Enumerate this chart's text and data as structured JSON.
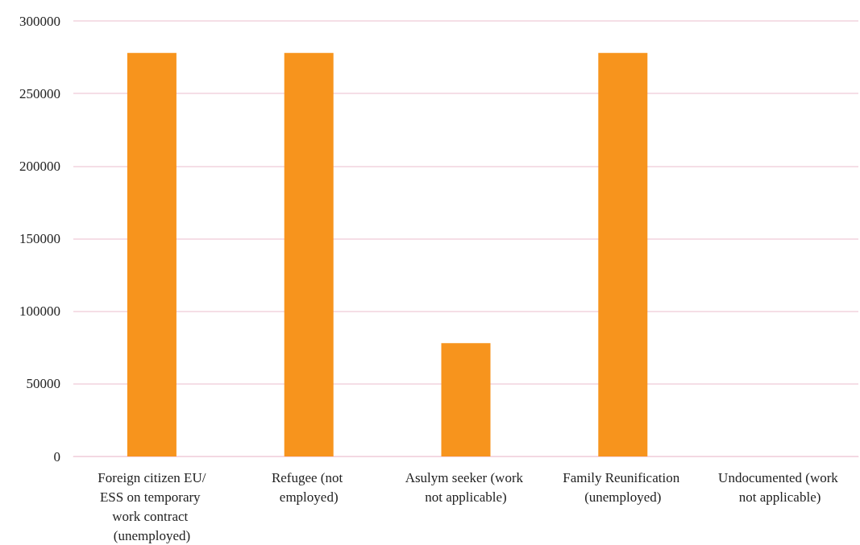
{
  "chart_data": {
    "type": "bar",
    "categories": [
      "Foreign citizen EU/ESS on temporary work contract (unemployed)",
      "Refugee (not employed)",
      "Asulym seeker (work not applicable)",
      "Family Reunification (unemployed)",
      "Undocumented (work not applicable)"
    ],
    "values": [
      278000,
      278000,
      78000,
      278000,
      0
    ],
    "color": "#f7941d",
    "ylim": [
      0,
      300000
    ],
    "yticks": [
      0,
      50000,
      100000,
      150000,
      200000,
      250000,
      300000
    ],
    "grid": "y"
  }
}
